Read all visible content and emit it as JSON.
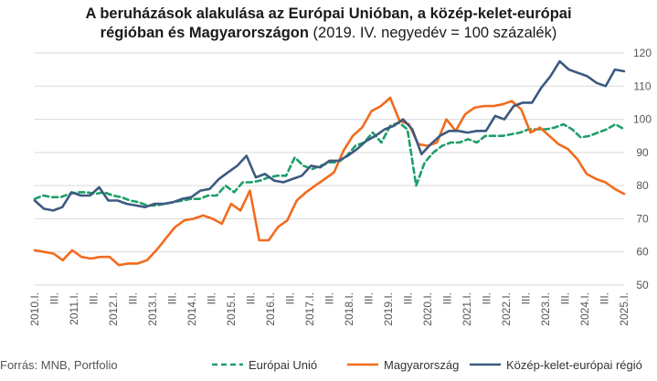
{
  "chart_data": {
    "type": "line",
    "title_bold_line1": "A beruházások alakulása az Európai Unióban, a közép-kelet-európai",
    "title_bold_line2": "régióban és Magyarországon",
    "title_normal_line2": " (2019. IV. negyedév = 100 százalék)",
    "x_tick_labels": [
      "2010.I.",
      "III.",
      "2011.I.",
      "III.",
      "2012.I.",
      "III.",
      "2013.I.",
      "III.",
      "2014.I.",
      "III.",
      "2015.I.",
      "III.",
      "2016.I.",
      "III.",
      "2017.I.",
      "III.",
      "2018.I.",
      "III.",
      "2019.I.",
      "III.",
      "2020.I.",
      "III.",
      "2021.I.",
      "III.",
      "2022.I.",
      "III.",
      "2023.I.",
      "III.",
      "2024.I.",
      "III.",
      "2025.I."
    ],
    "y_ticks": [
      50,
      60,
      70,
      80,
      90,
      100,
      110,
      120
    ],
    "ylim": [
      50,
      120
    ],
    "grid": true,
    "series": [
      {
        "name": "Európai Unió",
        "color": "#1e9e6a",
        "style": "dashed",
        "values": [
          76,
          77,
          76.5,
          76.5,
          77.5,
          78,
          78,
          77.5,
          78,
          77,
          76.5,
          75.5,
          75,
          74,
          74,
          74.5,
          75,
          75.5,
          76,
          76,
          77,
          77,
          80,
          78,
          81,
          81,
          81.5,
          82.5,
          83,
          83,
          88.5,
          86,
          85,
          86,
          87,
          87,
          89,
          92,
          93,
          96,
          93,
          98,
          99,
          97,
          80,
          87,
          90,
          92,
          93,
          93,
          94,
          93,
          95,
          95,
          95,
          95.5,
          96,
          97,
          97,
          97,
          97.5,
          98.5,
          97,
          94.5,
          95,
          96,
          97,
          98.5,
          97
        ]
      },
      {
        "name": "Magyarország",
        "color": "#f26b1d",
        "style": "solid",
        "values": [
          60.5,
          60,
          59.5,
          57.5,
          60.5,
          58.5,
          58,
          58.5,
          58.5,
          56,
          56.5,
          56.5,
          57.5,
          60.5,
          64,
          67.5,
          69.5,
          70,
          71,
          70,
          68.5,
          74.5,
          72.5,
          78.5,
          63.5,
          63.5,
          67.5,
          69.5,
          75.5,
          78,
          80,
          82,
          84,
          90.5,
          95,
          97.5,
          102.5,
          104,
          106.5,
          99.5,
          98.5,
          92.5,
          92,
          93,
          100,
          96.5,
          101.5,
          103.5,
          104,
          104,
          104.5,
          105.5,
          103,
          96,
          97.5,
          95,
          92.5,
          91,
          88,
          83.5,
          82,
          81,
          79,
          77.5
        ]
      },
      {
        "name": "Közép-kelet-európai régió",
        "color": "#3d5a80",
        "style": "solid",
        "values": [
          75.5,
          73,
          72.5,
          73.5,
          78,
          77,
          77,
          79.5,
          75.5,
          75.5,
          74.5,
          74,
          73.5,
          74.5,
          74.5,
          75,
          76,
          76.5,
          78.5,
          79,
          82,
          84,
          86,
          89,
          82.5,
          83.5,
          81.5,
          81,
          82,
          83,
          86,
          85.5,
          87.5,
          87.5,
          89,
          91,
          93.5,
          95,
          97,
          98,
          100,
          97,
          89.5,
          92.5,
          95,
          96.5,
          96.5,
          96,
          96.5,
          96.5,
          101,
          100,
          104,
          105,
          105,
          109.5,
          113,
          117.5,
          115,
          114,
          113,
          111,
          110,
          115,
          114.5
        ]
      }
    ],
    "legend": {
      "placement": "bottom"
    },
    "source": "Forrás: MNB, Portfolio"
  }
}
